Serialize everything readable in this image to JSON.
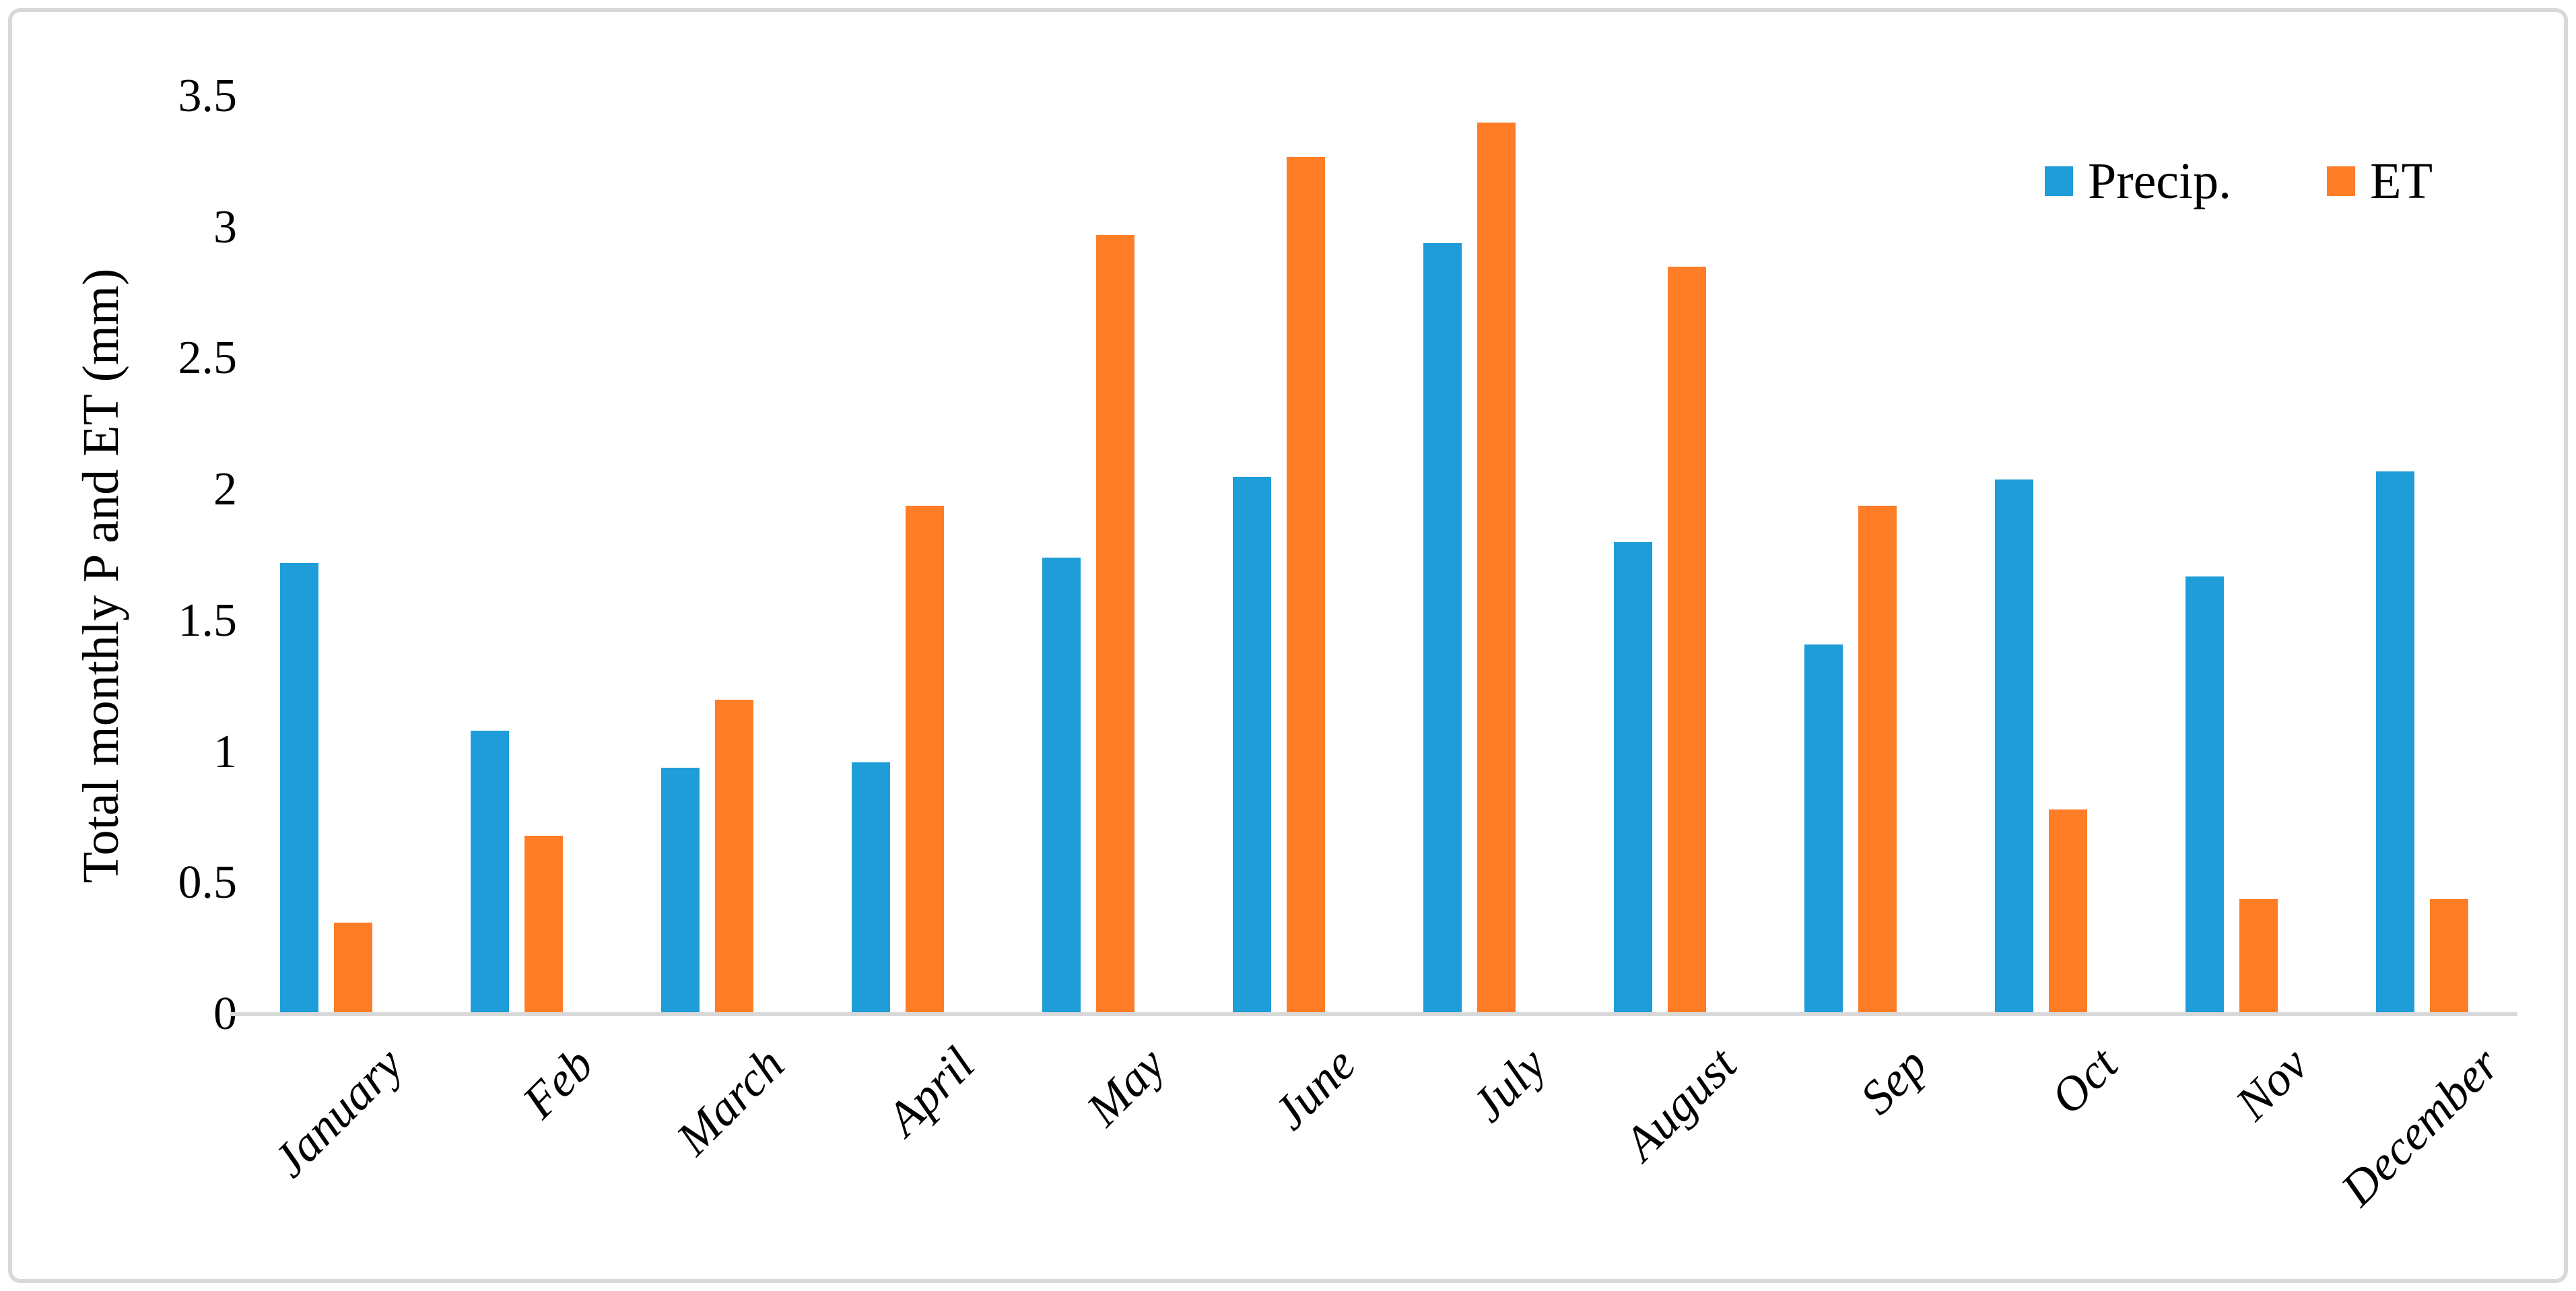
{
  "figure": {
    "background": "#FFFFFF",
    "border_color": "#D9D9D9",
    "axis_line_color": "#D9D9D9",
    "text_color": "#000000"
  },
  "y_axis": {
    "title": "Total monthly P and ET (mm)",
    "tick_labels": [
      "0",
      "0.5",
      "1",
      "1.5",
      "2",
      "2.5",
      "3",
      "3.5"
    ],
    "tick_values": [
      0,
      0.5,
      1,
      1.5,
      2,
      2.5,
      3,
      3.5
    ],
    "min": 0,
    "max": 3.5
  },
  "legend": {
    "position": "top-right",
    "items": [
      {
        "label": "Precip.",
        "color": "#1F9DD8"
      },
      {
        "label": "ET",
        "color": "#FF7D27"
      }
    ]
  },
  "chart_data": {
    "type": "bar",
    "title": "",
    "xlabel": "",
    "ylabel": "Total monthly P and ET (mm)",
    "ylim": [
      0,
      3.5
    ],
    "grid": false,
    "legend_position": "top-right",
    "categories": [
      "January",
      "Feb",
      "March",
      "April",
      "May",
      "June",
      "July",
      "August",
      "Sep",
      "Oct",
      "Nov",
      "December"
    ],
    "series": [
      {
        "name": "Precip.",
        "color": "#1F9DD8",
        "values": [
          1.72,
          1.08,
          0.94,
          0.96,
          1.74,
          2.05,
          2.94,
          1.8,
          1.41,
          2.04,
          1.67,
          2.07
        ]
      },
      {
        "name": "ET",
        "color": "#FF7D27",
        "values": [
          0.35,
          0.68,
          1.2,
          1.94,
          2.97,
          3.27,
          3.4,
          2.85,
          1.94,
          0.78,
          0.44,
          0.44
        ]
      }
    ]
  }
}
